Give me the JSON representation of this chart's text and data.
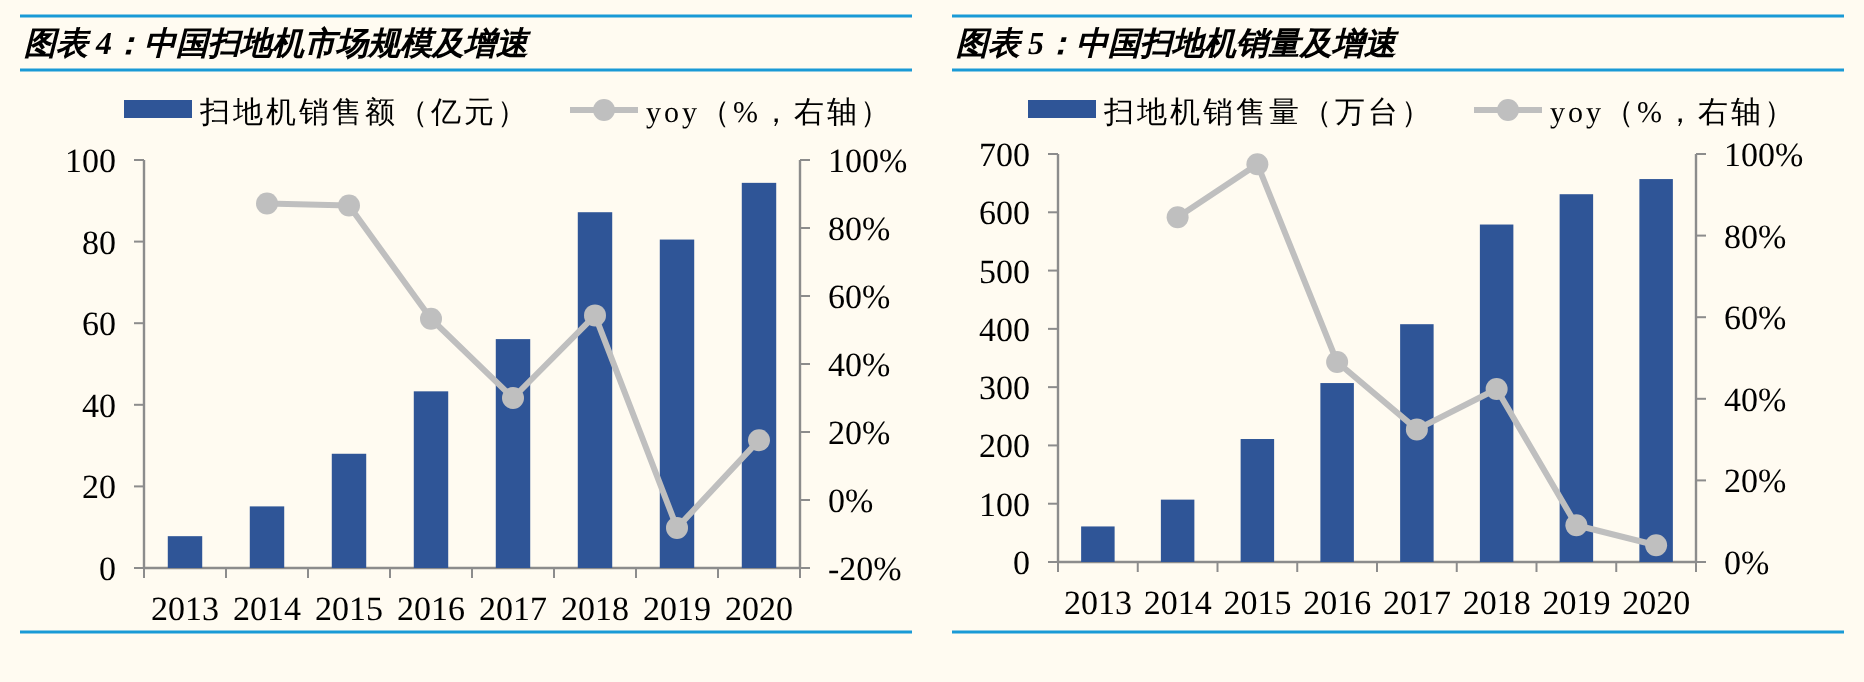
{
  "chart_data": [
    {
      "type": "bar",
      "title": "图表 4：中国扫地机市场规模及增速",
      "categories": [
        "2013",
        "2014",
        "2015",
        "2016",
        "2017",
        "2018",
        "2019",
        "2020"
      ],
      "series": [
        {
          "name": "扫地机销售额（亿元）",
          "color": "#2f5597",
          "values": [
            7.8,
            15.1,
            28,
            43.3,
            56.1,
            87.2,
            80.5,
            94.4
          ]
        },
        {
          "name": "yoy（%，右轴）",
          "type": "line",
          "axis": "y2",
          "color": "#bfbfbf",
          "marker": "circle",
          "values": [
            null,
            87.2,
            86.6,
            53.3,
            30,
            54.3,
            -8.2,
            17.6
          ]
        }
      ],
      "ylim": [
        0,
        100
      ],
      "yticks": [
        0,
        20,
        40,
        60,
        80,
        100
      ],
      "y2lim": [
        -20,
        100
      ],
      "y2ticks": [
        {
          "value": -20,
          "label": "-20%"
        },
        {
          "value": 0,
          "label": "0%"
        },
        {
          "value": 20,
          "label": "20%"
        },
        {
          "value": 40,
          "label": "40%"
        },
        {
          "value": 60,
          "label": "60%"
        },
        {
          "value": 80,
          "label": "80%"
        },
        {
          "value": 100,
          "label": "100%"
        }
      ],
      "legend": "top"
    },
    {
      "type": "bar",
      "title": "图表 5：中国扫地机销量及增速",
      "categories": [
        "2013",
        "2014",
        "2015",
        "2016",
        "2017",
        "2018",
        "2019",
        "2020"
      ],
      "series": [
        {
          "name": "扫地机销售量（万台）",
          "color": "#2f5597",
          "values": [
            61,
            107,
            211,
            307,
            408,
            579,
            631,
            657
          ]
        },
        {
          "name": "yoy（%，右轴）",
          "type": "line",
          "axis": "y2",
          "color": "#bfbfbf",
          "marker": "circle",
          "values": [
            null,
            84.5,
            97.5,
            49,
            32.5,
            42.4,
            9,
            4.1
          ]
        }
      ],
      "ylim": [
        0,
        700
      ],
      "yticks": [
        0,
        100,
        200,
        300,
        400,
        500,
        600,
        700
      ],
      "y2lim": [
        0,
        100
      ],
      "y2ticks": [
        {
          "value": 0,
          "label": "0%"
        },
        {
          "value": 20,
          "label": "20%"
        },
        {
          "value": 40,
          "label": "40%"
        },
        {
          "value": 60,
          "label": "60%"
        },
        {
          "value": 80,
          "label": "80%"
        },
        {
          "value": 100,
          "label": "100%"
        }
      ],
      "legend": "top"
    }
  ]
}
